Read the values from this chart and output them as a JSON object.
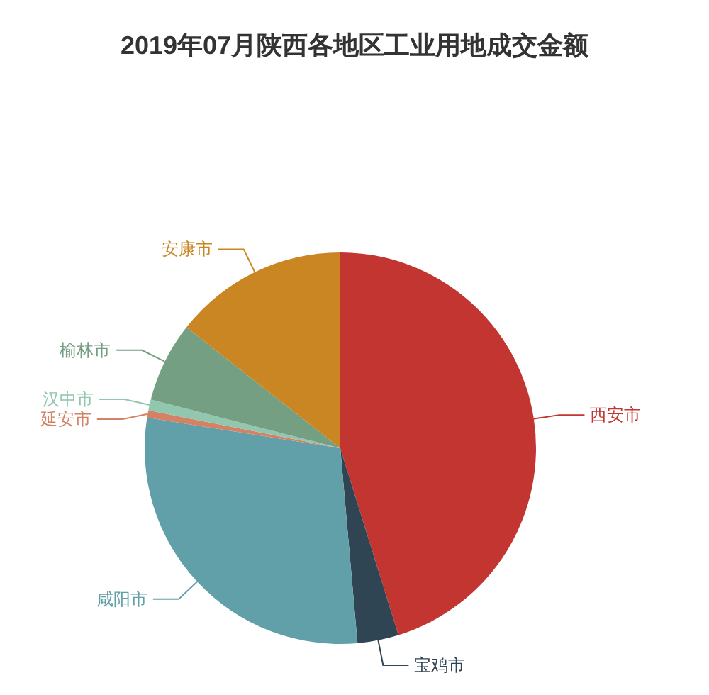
{
  "chart_data": {
    "type": "pie",
    "title": "2019年07月陕西各地区工业用地成交金额",
    "categories": [
      "西安市",
      "宝鸡市",
      "咸阳市",
      "延安市",
      "汉中市",
      "榆林市",
      "安康市"
    ],
    "values": [
      45.2,
      3.4,
      28.9,
      0.6,
      0.9,
      6.6,
      14.4
    ],
    "colors": [
      "#c23531",
      "#2f4554",
      "#61a0a8",
      "#d48265",
      "#91c7ae",
      "#749f83",
      "#ca8622"
    ]
  }
}
